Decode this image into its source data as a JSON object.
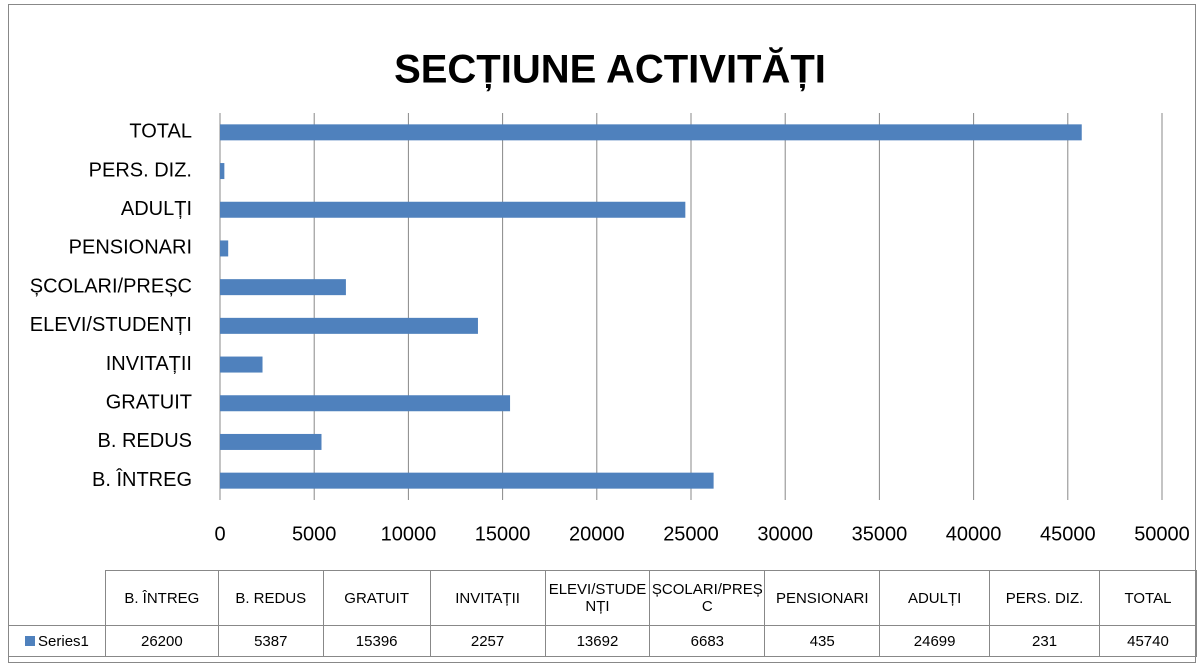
{
  "chart_data": {
    "type": "bar",
    "orientation": "horizontal",
    "title": "SECȚIUNE ACTIVITĂȚI",
    "categories": [
      "B. ÎNTREG",
      "B. REDUS",
      "GRATUIT",
      "INVITAȚII",
      "ELEVI/STUDENȚI",
      "ȘCOLARI/PREȘC",
      "PENSIONARI",
      "ADULȚI",
      "PERS. DIZ.",
      "TOTAL"
    ],
    "series": [
      {
        "name": "Series1",
        "color": "#4f81bd",
        "values": [
          26200,
          5387,
          15396,
          2257,
          13692,
          6683,
          435,
          24699,
          231,
          45740
        ]
      }
    ],
    "xlim": [
      0,
      50000
    ],
    "xticks": [
      0,
      5000,
      10000,
      15000,
      20000,
      25000,
      30000,
      35000,
      40000,
      45000,
      50000
    ],
    "grid": true,
    "data_table": true
  }
}
